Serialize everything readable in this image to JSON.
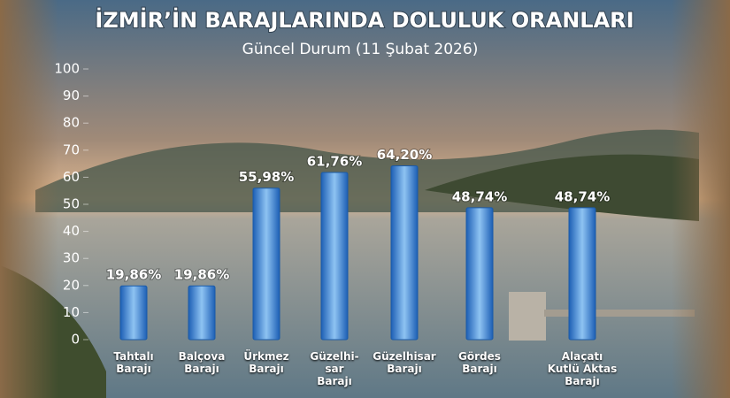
{
  "chart_data": {
    "type": "bar",
    "title": "İZMİR’İN BARAJLARINDA DOLULUK ORANLARI",
    "subtitle": "Güncel Durum (11 Şubat 2026)",
    "categories": [
      "Tahtalı\nBarajı",
      "Balçova\nBarajı",
      "Ürkmez\nBarajı",
      "Güzelhi-\nsar\nBarajı",
      "Güzelhisar\nBarajı",
      "Gördes\nBarajı",
      "Alaçatı\nKutlü Aktas\nBarajı"
    ],
    "values": [
      19.86,
      19.86,
      55.98,
      61.76,
      64.2,
      48.74,
      48.74
    ],
    "value_labels": [
      "19,86%",
      "19,86%",
      "55,98%",
      "61,76%",
      "64,20%",
      "48,74%",
      "48,74%"
    ],
    "color": "#3d8fe0",
    "ylim": [
      0,
      100
    ],
    "yticks": [
      0,
      10,
      20,
      30,
      40,
      50,
      60,
      70,
      80,
      90,
      100
    ]
  }
}
